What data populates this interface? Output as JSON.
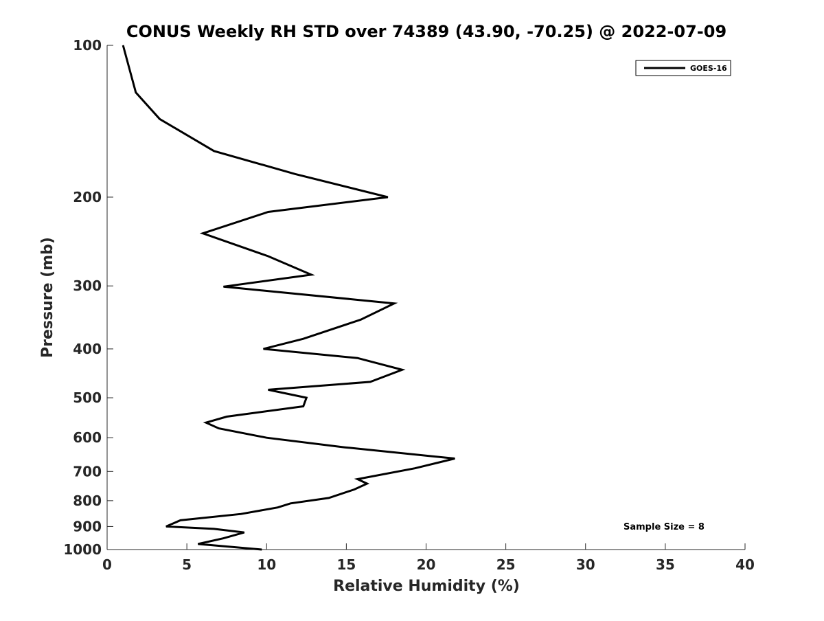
{
  "chart_data": {
    "type": "line",
    "title": "CONUS Weekly RH STD over 74389 (43.90, -70.25) @ 2022-07-09",
    "xlabel": "Relative Humidity (%)",
    "ylabel": "Pressure (mb)",
    "xlim": [
      0,
      40
    ],
    "ylim": [
      100,
      1000
    ],
    "y_scale": "log",
    "y_reversed": true,
    "grid": false,
    "xticks": [
      0,
      5,
      10,
      15,
      20,
      25,
      30,
      35,
      40
    ],
    "yticks": [
      100,
      200,
      300,
      400,
      500,
      600,
      700,
      800,
      900,
      1000
    ],
    "legend": {
      "placement": "top-right",
      "entries": [
        "GOES-16"
      ]
    },
    "annotations": [
      "Sample Size = 8"
    ],
    "series": [
      {
        "name": "GOES-16",
        "color": "#000000",
        "points": [
          {
            "x": 9.7,
            "y": 1000
          },
          {
            "x": 5.7,
            "y": 975
          },
          {
            "x": 7.3,
            "y": 950
          },
          {
            "x": 8.6,
            "y": 925
          },
          {
            "x": 6.7,
            "y": 910
          },
          {
            "x": 3.7,
            "y": 900
          },
          {
            "x": 4.6,
            "y": 875
          },
          {
            "x": 8.4,
            "y": 850
          },
          {
            "x": 10.7,
            "y": 825
          },
          {
            "x": 11.5,
            "y": 810
          },
          {
            "x": 13.9,
            "y": 790
          },
          {
            "x": 15.5,
            "y": 760
          },
          {
            "x": 16.3,
            "y": 740
          },
          {
            "x": 15.7,
            "y": 725
          },
          {
            "x": 19.3,
            "y": 690
          },
          {
            "x": 21.8,
            "y": 660
          },
          {
            "x": 14.9,
            "y": 627
          },
          {
            "x": 10.0,
            "y": 600
          },
          {
            "x": 7.0,
            "y": 575
          },
          {
            "x": 6.2,
            "y": 560
          },
          {
            "x": 7.5,
            "y": 545
          },
          {
            "x": 12.3,
            "y": 520
          },
          {
            "x": 12.5,
            "y": 500
          },
          {
            "x": 10.1,
            "y": 482
          },
          {
            "x": 16.5,
            "y": 465
          },
          {
            "x": 18.5,
            "y": 440
          },
          {
            "x": 15.7,
            "y": 417
          },
          {
            "x": 9.8,
            "y": 400
          },
          {
            "x": 12.3,
            "y": 382
          },
          {
            "x": 15.9,
            "y": 350
          },
          {
            "x": 18.0,
            "y": 325
          },
          {
            "x": 7.3,
            "y": 301
          },
          {
            "x": 12.8,
            "y": 285
          },
          {
            "x": 10.1,
            "y": 262
          },
          {
            "x": 6.0,
            "y": 236
          },
          {
            "x": 10.1,
            "y": 214
          },
          {
            "x": 17.6,
            "y": 200
          },
          {
            "x": 11.8,
            "y": 180
          },
          {
            "x": 6.7,
            "y": 162
          },
          {
            "x": 3.3,
            "y": 140
          },
          {
            "x": 1.8,
            "y": 124
          },
          {
            "x": 1.0,
            "y": 100
          }
        ]
      }
    ]
  }
}
